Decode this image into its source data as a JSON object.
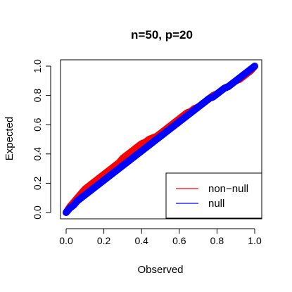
{
  "chart_data": {
    "type": "scatter",
    "title": "n=50, p=20",
    "xlabel": "Observed",
    "ylabel": "Expected",
    "xlim": [
      0,
      1
    ],
    "ylim": [
      0,
      1
    ],
    "xticks": [
      "0.0",
      "0.2",
      "0.4",
      "0.6",
      "0.8",
      "1.0"
    ],
    "yticks": [
      "0.0",
      "0.2",
      "0.4",
      "0.6",
      "0.8",
      "1.0"
    ],
    "grid": false,
    "legend_position": "bottom-right",
    "reference_line": {
      "style": "dashed",
      "from": [
        0,
        0
      ],
      "to": [
        1,
        1
      ]
    },
    "series": [
      {
        "name": "non−null",
        "color": "#ff0000",
        "x": [
          0.0,
          0.02,
          0.04,
          0.06,
          0.08,
          0.1,
          0.12,
          0.14,
          0.16,
          0.18,
          0.2,
          0.22,
          0.24,
          0.26,
          0.28,
          0.3,
          0.32,
          0.34,
          0.36,
          0.38,
          0.4,
          0.42,
          0.44,
          0.46,
          0.48,
          0.5,
          0.52,
          0.54,
          0.56,
          0.58,
          0.6,
          0.62,
          0.64,
          0.66,
          0.68,
          0.7,
          0.72,
          0.74,
          0.76,
          0.78,
          0.8,
          0.82,
          0.84,
          0.86,
          0.88,
          0.9,
          0.92,
          0.94,
          0.96,
          0.98,
          1.0
        ],
        "y": [
          0.0,
          0.04,
          0.07,
          0.1,
          0.13,
          0.16,
          0.18,
          0.2,
          0.22,
          0.24,
          0.26,
          0.28,
          0.3,
          0.32,
          0.34,
          0.37,
          0.39,
          0.41,
          0.43,
          0.45,
          0.47,
          0.48,
          0.5,
          0.51,
          0.52,
          0.54,
          0.56,
          0.58,
          0.6,
          0.62,
          0.64,
          0.66,
          0.68,
          0.69,
          0.71,
          0.72,
          0.74,
          0.76,
          0.78,
          0.8,
          0.81,
          0.83,
          0.85,
          0.86,
          0.88,
          0.9,
          0.91,
          0.93,
          0.95,
          0.97,
          1.0
        ]
      },
      {
        "name": "null",
        "color": "#0000ff",
        "x": [
          0.0,
          0.02,
          0.04,
          0.06,
          0.08,
          0.1,
          0.12,
          0.14,
          0.16,
          0.18,
          0.2,
          0.22,
          0.24,
          0.26,
          0.28,
          0.3,
          0.32,
          0.34,
          0.36,
          0.38,
          0.4,
          0.42,
          0.44,
          0.46,
          0.48,
          0.5,
          0.52,
          0.54,
          0.56,
          0.58,
          0.6,
          0.62,
          0.64,
          0.66,
          0.68,
          0.7,
          0.72,
          0.74,
          0.76,
          0.78,
          0.8,
          0.82,
          0.84,
          0.86,
          0.88,
          0.9,
          0.92,
          0.94,
          0.96,
          0.98,
          1.0
        ],
        "y": [
          0.0,
          0.03,
          0.05,
          0.08,
          0.1,
          0.12,
          0.14,
          0.16,
          0.18,
          0.2,
          0.22,
          0.24,
          0.26,
          0.28,
          0.3,
          0.32,
          0.34,
          0.36,
          0.38,
          0.4,
          0.42,
          0.44,
          0.46,
          0.48,
          0.5,
          0.52,
          0.54,
          0.56,
          0.58,
          0.6,
          0.62,
          0.64,
          0.66,
          0.68,
          0.7,
          0.72,
          0.74,
          0.76,
          0.78,
          0.79,
          0.81,
          0.83,
          0.85,
          0.86,
          0.88,
          0.9,
          0.92,
          0.94,
          0.96,
          0.98,
          1.0
        ]
      }
    ]
  }
}
